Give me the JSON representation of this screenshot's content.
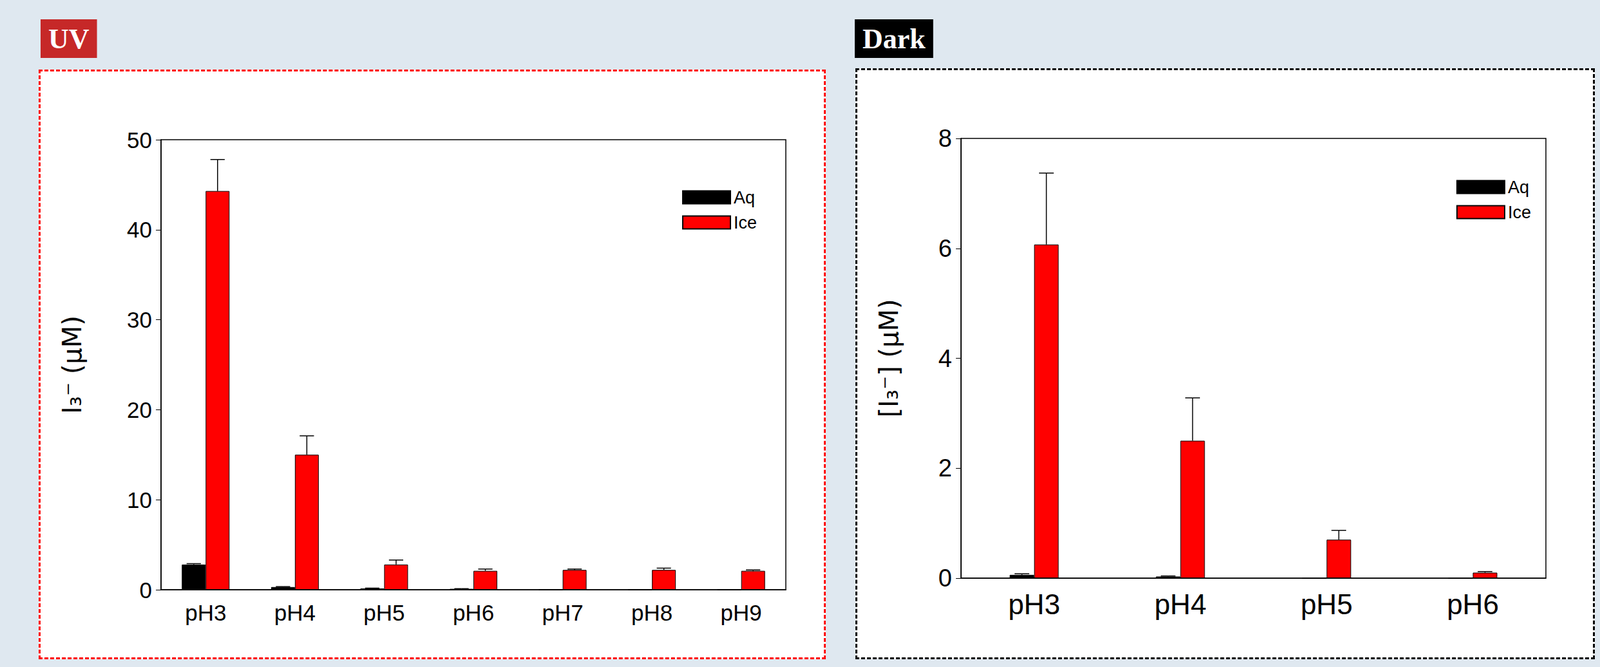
{
  "chart_data": [
    {
      "type": "bar",
      "title": "UV",
      "categories": [
        "pH3",
        "pH4",
        "pH5",
        "pH6",
        "pH7",
        "pH8",
        "pH9"
      ],
      "y_label": "I₃⁻ (μM)",
      "ylim": [
        0,
        50
      ],
      "yticks": [
        0,
        10,
        20,
        30,
        40,
        50
      ],
      "legend": "upper right",
      "series": [
        {
          "name": "Aq",
          "color": "#000000",
          "values": [
            2.8,
            0.3,
            0.15,
            0.1,
            0,
            0,
            0
          ],
          "error": [
            0.1,
            0.05,
            0.03,
            0.02,
            0,
            0,
            0
          ]
        },
        {
          "name": "Ice",
          "color": "#ff0000",
          "values": [
            44.3,
            15.0,
            2.8,
            2.1,
            2.2,
            2.2,
            2.1
          ],
          "error": [
            3.5,
            2.1,
            0.5,
            0.2,
            0.1,
            0.2,
            0.1
          ]
        }
      ]
    },
    {
      "type": "bar",
      "title": "Dark",
      "categories": [
        "pH3",
        "pH4",
        "pH5",
        "pH6"
      ],
      "y_label": "[I₃⁻] (μM)",
      "ylim": [
        0,
        8
      ],
      "yticks": [
        0,
        2,
        4,
        6,
        8
      ],
      "legend": "upper right",
      "series": [
        {
          "name": "Aq",
          "color": "#000000",
          "values": [
            0.06,
            0.03,
            0,
            0
          ],
          "error": [
            0.02,
            0.01,
            0,
            0
          ]
        },
        {
          "name": "Ice",
          "color": "#ff0000",
          "values": [
            6.07,
            2.5,
            0.7,
            0.1
          ],
          "error": [
            1.3,
            0.78,
            0.17,
            0.02
          ]
        }
      ]
    }
  ]
}
